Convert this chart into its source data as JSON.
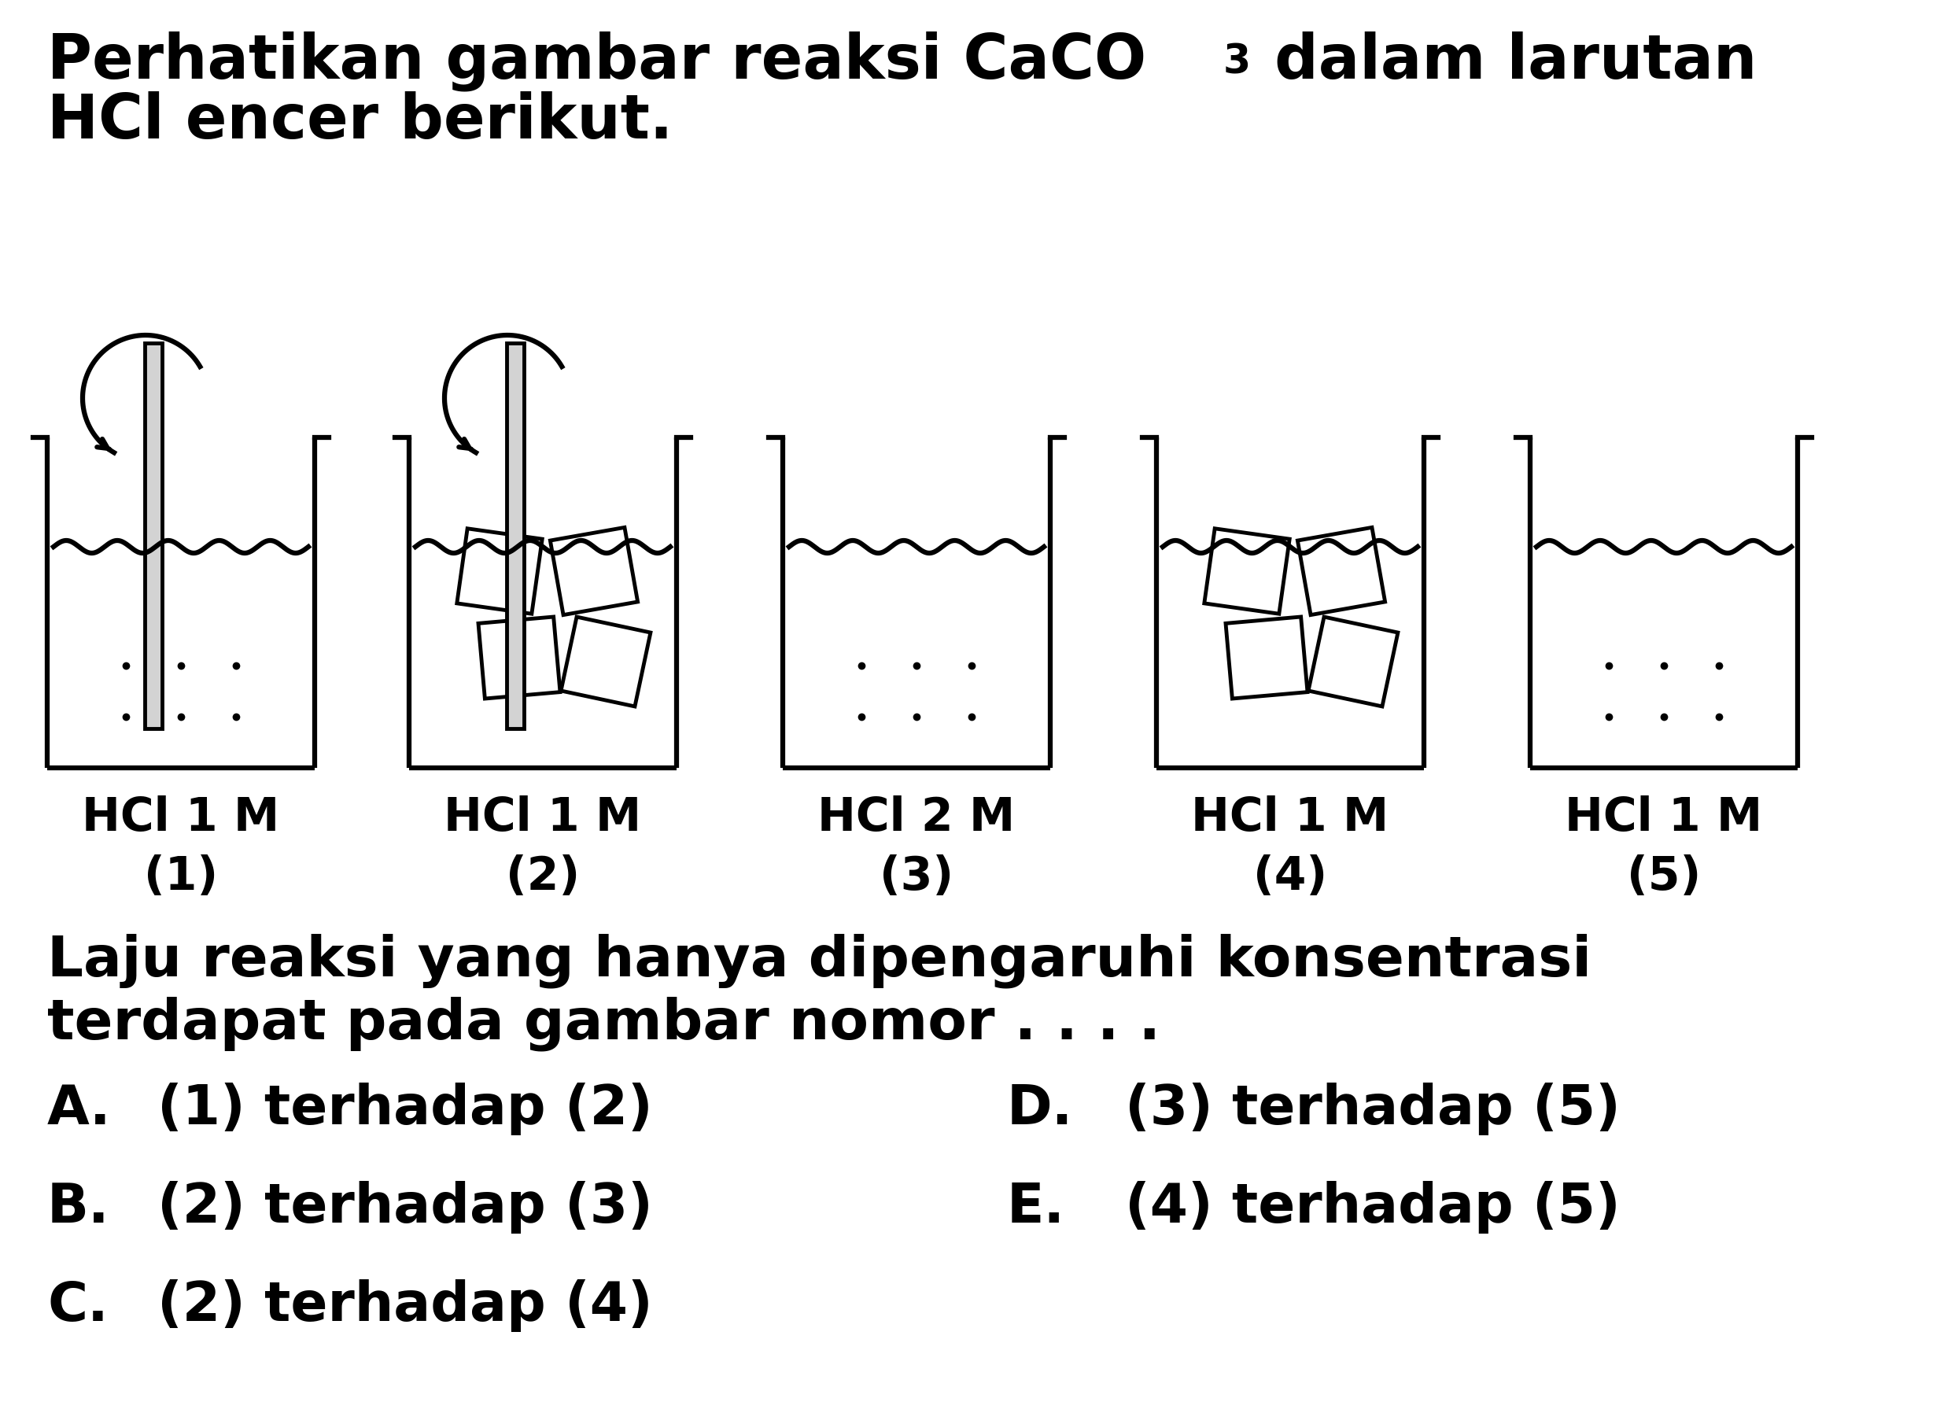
{
  "beaker_labels": [
    "HCl 1 M",
    "HCl 1 M",
    "HCl 2 M",
    "HCl 1 M",
    "HCl 1 M"
  ],
  "beaker_numbers": [
    "(1)",
    "(2)",
    "(3)",
    "(4)",
    "(5)"
  ],
  "question_line1": "Laju reaksi yang hanya dipengaruhi konsentrasi",
  "question_line2": "terdapat pada gambar nomor . . . .",
  "choices": [
    [
      "A.",
      "(1) terhadap (2)",
      "D.",
      "(3) terhadap (5)"
    ],
    [
      "B.",
      "(2) terhadap (3)",
      "E.",
      "(4) terhadap (5)"
    ],
    [
      "C.",
      "(2) terhadap (4)",
      "",
      ""
    ]
  ],
  "bg_color": "#ffffff",
  "line_color": "#000000",
  "text_color": "#000000",
  "title_fontsize": 56,
  "label_fontsize": 42,
  "question_fontsize": 52,
  "choice_fontsize": 50
}
